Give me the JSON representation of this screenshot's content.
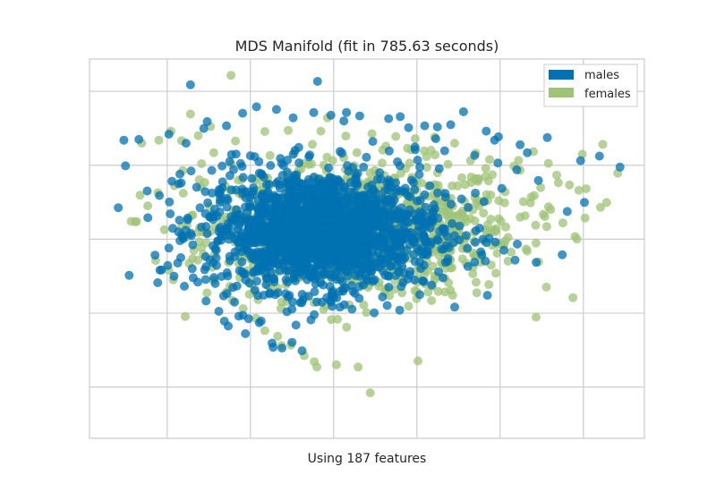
{
  "chart_data": {
    "type": "scatter",
    "title": "MDS Manifold (fit in 785.63 seconds)",
    "xlabel": "Using 187 features",
    "ylabel": "",
    "xlim": [
      0,
      100
    ],
    "ylim": [
      0,
      100
    ],
    "grid": true,
    "legend": "top-right",
    "xticks": [
      14,
      29,
      44,
      59,
      74,
      89
    ],
    "yticks": [
      13.5,
      33,
      52.5,
      72,
      91.5
    ],
    "series": [
      {
        "name": "males",
        "color": "#0072b2",
        "points": [
          [
            18.2,
            93.2
          ],
          [
            41.1,
            94.1
          ],
          [
            6.2,
            78.6
          ],
          [
            8.9,
            78.8
          ],
          [
            17.4,
            77.8
          ],
          [
            14.3,
            80.2
          ],
          [
            20.6,
            81.7
          ],
          [
            24.7,
            82.4
          ],
          [
            27.6,
            85.7
          ],
          [
            30.1,
            87.4
          ],
          [
            33.7,
            86.7
          ],
          [
            36.7,
            84.5
          ],
          [
            40.4,
            85.9
          ],
          [
            43.5,
            85.2
          ],
          [
            46.3,
            85.9
          ],
          [
            48.7,
            85.0
          ],
          [
            53.9,
            84.3
          ],
          [
            56.0,
            84.8
          ],
          [
            57.5,
            81.9
          ],
          [
            60.4,
            82.4
          ],
          [
            62.4,
            79.0
          ],
          [
            62.7,
            82.1
          ],
          [
            67.4,
            86.1
          ],
          [
            65.1,
            82.7
          ],
          [
            71.5,
            81.0
          ],
          [
            73.0,
            78.6
          ],
          [
            77.6,
            77.4
          ],
          [
            82.5,
            79.3
          ],
          [
            88.5,
            73.2
          ],
          [
            91.9,
            74.4
          ],
          [
            95.6,
            71.5
          ],
          [
            78.9,
            75.3
          ],
          [
            73.7,
            79.5
          ],
          [
            5.2,
            60.8
          ],
          [
            12.6,
            64.0
          ],
          [
            14.4,
            62.3
          ],
          [
            16.1,
            67.1
          ],
          [
            17.7,
            57.6
          ],
          [
            18.3,
            70.5
          ],
          [
            21.8,
            58.3
          ],
          [
            22.9,
            45.6
          ],
          [
            24.9,
            42.8
          ],
          [
            29.8,
            39.1
          ],
          [
            37.1,
            41.5
          ],
          [
            38.0,
            35.8
          ],
          [
            40.5,
            32.6
          ],
          [
            48.6,
            36.9
          ],
          [
            51.3,
            33.1
          ],
          [
            45.2,
            38.8
          ],
          [
            55.9,
            33.8
          ],
          [
            57.7,
            43.1
          ],
          [
            63.7,
            42.3
          ],
          [
            68.2,
            45.3
          ],
          [
            67.9,
            53.5
          ],
          [
            70.3,
            55.4
          ],
          [
            74.7,
            49.6
          ],
          [
            77.1,
            51.2
          ],
          [
            85.2,
            48.4
          ],
          [
            80.5,
            46.4
          ],
          [
            89.2,
            62.2
          ],
          [
            86.1,
            59.8
          ],
          [
            13.0,
            44.4
          ],
          [
            15.9,
            46.2
          ],
          [
            11.8,
            48.3
          ],
          [
            17.1,
            40.1
          ],
          [
            21.0,
            36.2
          ],
          [
            23.3,
            33.5
          ],
          [
            24.3,
            30.9
          ],
          [
            25.0,
            29.6
          ],
          [
            28.1,
            27.6
          ],
          [
            32.9,
            25.1
          ],
          [
            34.7,
            23.8
          ],
          [
            36.5,
            25.3
          ],
          [
            38.3,
            23.1
          ],
          [
            33.1,
            24.0
          ],
          [
            30.6,
            30.5
          ],
          [
            26.9,
            32.2
          ],
          [
            18.7,
            42.3
          ],
          [
            16.3,
            52.1
          ],
          [
            23.7,
            55.7
          ],
          [
            21.3,
            62.1
          ],
          [
            19.3,
            66.2
          ],
          [
            29.6,
            48.9
          ],
          [
            31.5,
            45.4
          ],
          [
            35.9,
            44.2
          ],
          [
            42.2,
            43.6
          ],
          [
            50.8,
            43.9
          ],
          [
            55.5,
            47.2
          ],
          [
            60.4,
            48.5
          ],
          [
            64.3,
            50.9
          ],
          [
            66.7,
            56.0
          ],
          [
            71.1,
            62.4
          ],
          [
            74.3,
            65.9
          ],
          [
            73.6,
            72.6
          ],
          [
            77.0,
            70.8
          ],
          [
            80.9,
            68.0
          ],
          [
            69.4,
            74.6
          ],
          [
            64.0,
            75.8
          ],
          [
            58.7,
            76.1
          ],
          [
            55.5,
            72.9
          ],
          [
            49.9,
            74.1
          ],
          [
            45.5,
            75.2
          ],
          [
            39.7,
            74.7
          ],
          [
            34.4,
            73.8
          ],
          [
            29.0,
            74.5
          ],
          [
            25.6,
            74.8
          ],
          [
            23.9,
            71.8
          ],
          [
            27.7,
            68.8
          ],
          [
            31.4,
            68.9
          ]
        ]
      },
      {
        "name": "females",
        "color": "#9fc377",
        "points": [
          [
            25.5,
            95.7
          ],
          [
            18.2,
            85.5
          ],
          [
            21.8,
            82.2
          ],
          [
            19.6,
            79.8
          ],
          [
            14.7,
            81.0
          ],
          [
            12.5,
            78.6
          ],
          [
            9.4,
            77.8
          ],
          [
            16.6,
            78.5
          ],
          [
            22.4,
            75.3
          ],
          [
            26.3,
            78.4
          ],
          [
            31.6,
            80.9
          ],
          [
            35.8,
            81.2
          ],
          [
            41.7,
            81.0
          ],
          [
            46.2,
            79.7
          ],
          [
            50.9,
            80.3
          ],
          [
            55.2,
            79.6
          ],
          [
            58.7,
            79.0
          ],
          [
            62.2,
            79.4
          ],
          [
            65.8,
            77.8
          ],
          [
            69.6,
            75.2
          ],
          [
            72.1,
            73.5
          ],
          [
            76.5,
            71.8
          ],
          [
            80.0,
            75.6
          ],
          [
            82.7,
            72.5
          ],
          [
            84.2,
            69.4
          ],
          [
            86.5,
            66.8
          ],
          [
            88.2,
            65.4
          ],
          [
            79.6,
            63.6
          ],
          [
            74.8,
            62.1
          ],
          [
            70.2,
            61.3
          ],
          [
            78.5,
            58.7
          ],
          [
            80.4,
            56.2
          ],
          [
            75.0,
            55.7
          ],
          [
            71.6,
            54.3
          ],
          [
            68.6,
            58.0
          ],
          [
            64.7,
            58.5
          ],
          [
            61.6,
            55.6
          ],
          [
            59.4,
            51.2
          ],
          [
            57.7,
            47.5
          ],
          [
            63.6,
            46.0
          ],
          [
            7.5,
            57.2
          ],
          [
            10.5,
            61.3
          ],
          [
            15.3,
            66.6
          ],
          [
            16.8,
            70.6
          ],
          [
            20.2,
            72.4
          ],
          [
            24.0,
            62.5
          ],
          [
            26.3,
            57.4
          ],
          [
            28.5,
            52.5
          ],
          [
            32.4,
            47.6
          ],
          [
            35.4,
            40.5
          ],
          [
            38.9,
            37.4
          ],
          [
            42.2,
            34.0
          ],
          [
            46.8,
            35.2
          ],
          [
            50.4,
            40.3
          ],
          [
            53.2,
            38.5
          ],
          [
            56.5,
            41.5
          ],
          [
            60.3,
            44.2
          ],
          [
            65.1,
            44.9
          ],
          [
            69.1,
            48.9
          ],
          [
            72.6,
            50.9
          ],
          [
            15.1,
            41.8
          ],
          [
            19.5,
            47.0
          ],
          [
            22.1,
            45.1
          ],
          [
            24.6,
            38.5
          ],
          [
            27.7,
            34.2
          ],
          [
            30.0,
            31.7
          ],
          [
            31.6,
            28.4
          ],
          [
            33.9,
            26.9
          ],
          [
            36.3,
            24.6
          ],
          [
            38.7,
            21.8
          ],
          [
            40.5,
            20.2
          ],
          [
            44.5,
            19.4
          ],
          [
            48.4,
            18.8
          ],
          [
            59.2,
            20.4
          ],
          [
            50.6,
            12.0
          ],
          [
            83.1,
            60.3
          ],
          [
            85.3,
            56.8
          ],
          [
            87.5,
            53.2
          ],
          [
            89.3,
            58.1
          ],
          [
            92.1,
            60.9
          ],
          [
            88.8,
            74.9
          ],
          [
            92.5,
            77.5
          ],
          [
            95.2,
            69.9
          ],
          [
            89.5,
            65.8
          ],
          [
            84.5,
            67.4
          ],
          [
            81.3,
            66.1
          ],
          [
            72.6,
            69.5
          ],
          [
            67.1,
            68.7
          ],
          [
            62.2,
            66.9
          ],
          [
            58.1,
            64.8
          ],
          [
            53.5,
            66.1
          ],
          [
            49.6,
            66.8
          ],
          [
            45.0,
            66.5
          ],
          [
            40.2,
            65.8
          ],
          [
            35.9,
            67.2
          ],
          [
            31.2,
            66.3
          ],
          [
            27.5,
            64.0
          ],
          [
            21.6,
            61.1
          ],
          [
            18.4,
            58.7
          ],
          [
            17.4,
            53.4
          ],
          [
            13.5,
            55.0
          ]
        ]
      }
    ]
  }
}
